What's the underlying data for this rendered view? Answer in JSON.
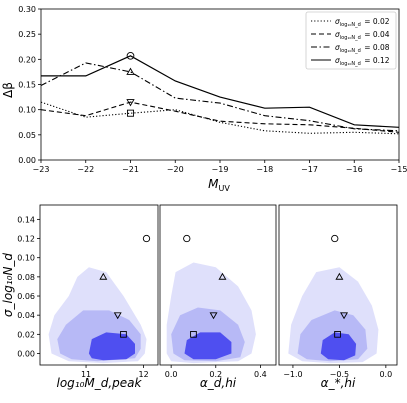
{
  "chart_data": [
    {
      "type": "line",
      "xlabel_main": "M",
      "xlabel_sub": "UV",
      "ylabel": "Δβ",
      "xlim": [
        -23,
        -15
      ],
      "ylim": [
        0,
        0.3
      ],
      "x_ticks": [
        -23,
        -22,
        -21,
        -20,
        -19,
        -18,
        -17,
        -16,
        -15
      ],
      "y_ticks": [
        0.0,
        0.05,
        0.1,
        0.15,
        0.2,
        0.25,
        0.3
      ],
      "legend_position": "top-right",
      "grid": false,
      "series": [
        {
          "sym": "σ",
          "sub": "log₁₀N_d",
          "value": "= 0.02",
          "style": "dotted",
          "x": [
            -23,
            -22,
            -21,
            -20,
            -19,
            -18,
            -17,
            -16,
            -15
          ],
          "y": [
            0.115,
            0.085,
            0.093,
            0.1,
            0.075,
            0.058,
            0.053,
            0.055,
            0.052
          ],
          "marker": {
            "shape": "square",
            "x": -21,
            "y": 0.093
          }
        },
        {
          "sym": "σ",
          "sub": "log₁₀N_d",
          "value": "= 0.04",
          "style": "dashed",
          "x": [
            -23,
            -22,
            -21,
            -20,
            -19,
            -18,
            -17,
            -16,
            -15
          ],
          "y": [
            0.1,
            0.088,
            0.115,
            0.097,
            0.077,
            0.072,
            0.07,
            0.063,
            0.055
          ],
          "marker": {
            "shape": "triangle-down",
            "x": -21,
            "y": 0.115
          }
        },
        {
          "sym": "σ",
          "sub": "log₁₀N_d",
          "value": "= 0.08",
          "style": "dashdot",
          "x": [
            -23,
            -22,
            -21,
            -20,
            -19,
            -18,
            -17,
            -16,
            -15
          ],
          "y": [
            0.148,
            0.193,
            0.175,
            0.123,
            0.113,
            0.088,
            0.078,
            0.062,
            0.058
          ],
          "marker": {
            "shape": "triangle-up",
            "x": -21,
            "y": 0.175
          }
        },
        {
          "sym": "σ",
          "sub": "log₁₀N_d",
          "value": "= 0.12",
          "style": "solid",
          "x": [
            -23,
            -22,
            -21,
            -20,
            -19,
            -18,
            -17,
            -16,
            -15
          ],
          "y": [
            0.167,
            0.167,
            0.207,
            0.157,
            0.125,
            0.103,
            0.105,
            0.07,
            0.065
          ],
          "marker": {
            "shape": "circle",
            "x": -21,
            "y": 0.207
          }
        }
      ]
    },
    {
      "type": "scatter",
      "panel": "corner-1",
      "xlabel": "log₁₀M_d,peak",
      "ylabel": "σ_log₁₀N_d",
      "xlim": [
        10.2,
        12.25
      ],
      "ylim": [
        -0.012,
        0.155
      ],
      "x_ticks": [
        11,
        12
      ],
      "y_ticks": [
        0.0,
        0.02,
        0.04,
        0.06,
        0.08,
        0.1,
        0.12,
        0.14
      ],
      "points": [
        {
          "shape": "circle",
          "x": 12.05,
          "y": 0.12
        },
        {
          "shape": "triangle-up",
          "x": 11.3,
          "y": 0.08
        },
        {
          "shape": "triangle-down",
          "x": 11.55,
          "y": 0.04
        },
        {
          "shape": "square",
          "x": 11.65,
          "y": 0.02
        }
      ],
      "contours": [
        {
          "level": "outer",
          "color": "#dfe0fb",
          "poly": [
            [
              10.4,
              0.0
            ],
            [
              10.35,
              0.02
            ],
            [
              10.45,
              0.04
            ],
            [
              10.7,
              0.06
            ],
            [
              10.85,
              0.08
            ],
            [
              11.05,
              0.09
            ],
            [
              11.35,
              0.085
            ],
            [
              11.65,
              0.06
            ],
            [
              11.8,
              0.045
            ],
            [
              11.95,
              0.03
            ],
            [
              12.05,
              0.015
            ],
            [
              12.02,
              0.0
            ],
            [
              11.9,
              -0.008
            ],
            [
              11.3,
              -0.01
            ],
            [
              10.7,
              -0.008
            ]
          ]
        },
        {
          "level": "middle",
          "color": "#b7b9f6",
          "poly": [
            [
              10.55,
              0.0
            ],
            [
              10.5,
              0.015
            ],
            [
              10.65,
              0.03
            ],
            [
              10.95,
              0.045
            ],
            [
              11.4,
              0.045
            ],
            [
              11.75,
              0.035
            ],
            [
              11.95,
              0.02
            ],
            [
              11.95,
              0.005
            ],
            [
              11.85,
              -0.005
            ],
            [
              11.2,
              -0.008
            ],
            [
              10.75,
              -0.006
            ]
          ]
        },
        {
          "level": "inner",
          "color": "#4f4ff0",
          "poly": [
            [
              11.05,
              0.0
            ],
            [
              11.1,
              0.015
            ],
            [
              11.35,
              0.022
            ],
            [
              11.7,
              0.02
            ],
            [
              11.85,
              0.01
            ],
            [
              11.85,
              0.0
            ],
            [
              11.7,
              -0.006
            ],
            [
              11.3,
              -0.007
            ],
            [
              11.1,
              -0.005
            ]
          ]
        }
      ]
    },
    {
      "type": "scatter",
      "panel": "corner-2",
      "xlabel": "α_d,hi",
      "xlim": [
        -0.05,
        0.47
      ],
      "ylim": [
        -0.012,
        0.155
      ],
      "x_ticks": [
        0.0,
        0.2,
        0.4
      ],
      "points": [
        {
          "shape": "circle",
          "x": 0.07,
          "y": 0.12
        },
        {
          "shape": "triangle-up",
          "x": 0.23,
          "y": 0.08
        },
        {
          "shape": "triangle-down",
          "x": 0.19,
          "y": 0.04
        },
        {
          "shape": "square",
          "x": 0.1,
          "y": 0.02
        }
      ],
      "contours": [
        {
          "level": "outer",
          "color": "#dfe0fb",
          "poly": [
            [
              -0.02,
              0.0
            ],
            [
              -0.02,
              0.03
            ],
            [
              0.0,
              0.06
            ],
            [
              0.02,
              0.085
            ],
            [
              0.1,
              0.095
            ],
            [
              0.2,
              0.09
            ],
            [
              0.3,
              0.07
            ],
            [
              0.36,
              0.045
            ],
            [
              0.38,
              0.02
            ],
            [
              0.36,
              0.0
            ],
            [
              0.3,
              -0.008
            ],
            [
              0.1,
              -0.01
            ],
            [
              0.0,
              -0.008
            ]
          ]
        },
        {
          "level": "middle",
          "color": "#b7b9f6",
          "poly": [
            [
              0.01,
              0.0
            ],
            [
              0.0,
              0.02
            ],
            [
              0.04,
              0.04
            ],
            [
              0.12,
              0.048
            ],
            [
              0.22,
              0.045
            ],
            [
              0.3,
              0.03
            ],
            [
              0.33,
              0.012
            ],
            [
              0.31,
              -0.004
            ],
            [
              0.2,
              -0.008
            ],
            [
              0.06,
              -0.007
            ]
          ]
        },
        {
          "level": "inner",
          "color": "#4f4ff0",
          "poly": [
            [
              0.06,
              0.0
            ],
            [
              0.07,
              0.014
            ],
            [
              0.13,
              0.022
            ],
            [
              0.22,
              0.022
            ],
            [
              0.27,
              0.012
            ],
            [
              0.27,
              0.0
            ],
            [
              0.2,
              -0.006
            ],
            [
              0.1,
              -0.006
            ]
          ]
        }
      ]
    },
    {
      "type": "scatter",
      "panel": "corner-3",
      "xlabel": "α_*,hi",
      "xlim": [
        -1.15,
        0.12
      ],
      "ylim": [
        -0.012,
        0.155
      ],
      "x_ticks": [
        -1.0,
        -0.5,
        0.0
      ],
      "points": [
        {
          "shape": "circle",
          "x": -0.55,
          "y": 0.12
        },
        {
          "shape": "triangle-up",
          "x": -0.5,
          "y": 0.08
        },
        {
          "shape": "triangle-down",
          "x": -0.45,
          "y": 0.04
        },
        {
          "shape": "square",
          "x": -0.52,
          "y": 0.02
        }
      ],
      "contours": [
        {
          "level": "outer",
          "color": "#dfe0fb",
          "poly": [
            [
              -1.05,
              0.0
            ],
            [
              -1.02,
              0.03
            ],
            [
              -0.9,
              0.06
            ],
            [
              -0.75,
              0.085
            ],
            [
              -0.5,
              0.09
            ],
            [
              -0.3,
              0.075
            ],
            [
              -0.15,
              0.05
            ],
            [
              -0.08,
              0.025
            ],
            [
              -0.1,
              0.0
            ],
            [
              -0.25,
              -0.009
            ],
            [
              -0.6,
              -0.01
            ],
            [
              -0.9,
              -0.008
            ]
          ]
        },
        {
          "level": "middle",
          "color": "#b7b9f6",
          "poly": [
            [
              -0.95,
              0.0
            ],
            [
              -0.92,
              0.02
            ],
            [
              -0.8,
              0.035
            ],
            [
              -0.55,
              0.045
            ],
            [
              -0.35,
              0.04
            ],
            [
              -0.22,
              0.025
            ],
            [
              -0.2,
              0.005
            ],
            [
              -0.3,
              -0.006
            ],
            [
              -0.6,
              -0.008
            ],
            [
              -0.85,
              -0.006
            ]
          ]
        },
        {
          "level": "inner",
          "color": "#4f4ff0",
          "poly": [
            [
              -0.7,
              0.0
            ],
            [
              -0.68,
              0.014
            ],
            [
              -0.55,
              0.022
            ],
            [
              -0.4,
              0.02
            ],
            [
              -0.32,
              0.01
            ],
            [
              -0.33,
              -0.002
            ],
            [
              -0.45,
              -0.007
            ],
            [
              -0.62,
              -0.006
            ]
          ]
        }
      ]
    }
  ]
}
